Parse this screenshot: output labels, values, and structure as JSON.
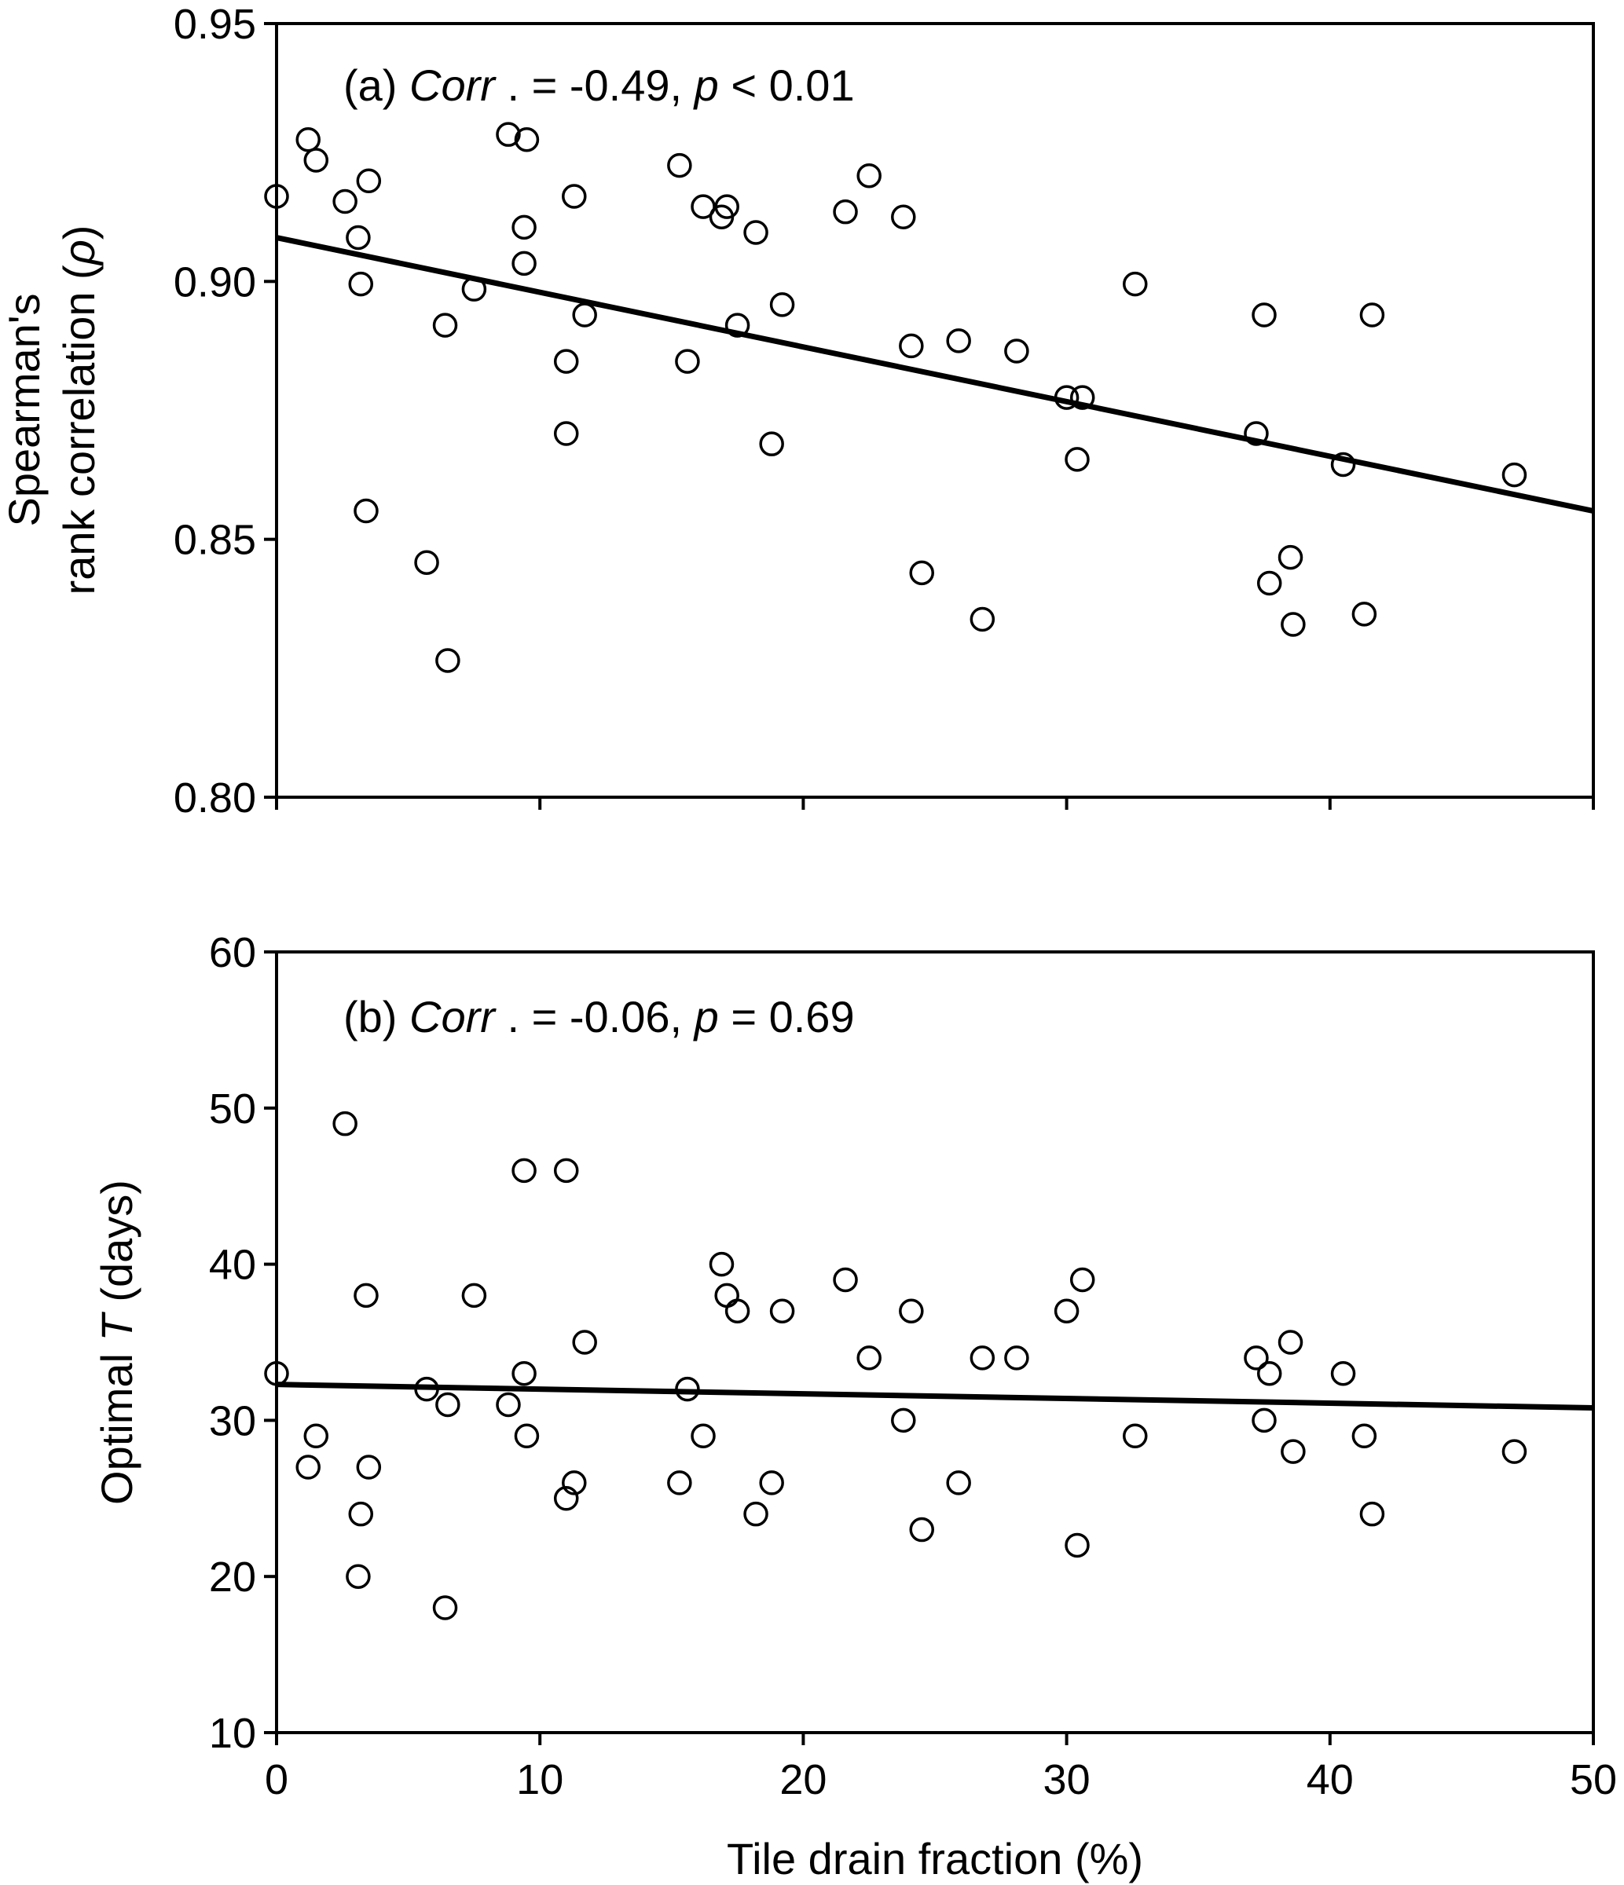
{
  "chart_data": [
    {
      "type": "scatter",
      "panel_label": "(a)",
      "annotation": {
        "corr_word": "Corr",
        "corr_value": ". = -0.49, ",
        "p_word": "p",
        "p_value": " < 0.01"
      },
      "ylabel_lines": [
        "Spearman's",
        "rank correlation ("
      ],
      "ylabel_symbol": "ρ",
      "ylabel_close": ")",
      "xlim": [
        0,
        50
      ],
      "ylim": [
        0.8,
        0.95
      ],
      "yticks": [
        "0.80",
        "0.85",
        "0.90",
        "0.95"
      ],
      "xticks": [
        "",
        "",
        "",
        "",
        "",
        ""
      ],
      "grid": false,
      "fit_line": {
        "x": [
          0,
          50
        ],
        "y": [
          0.9085,
          0.8555
        ]
      },
      "x": [
        0,
        1.2,
        1.5,
        2.6,
        3.1,
        3.2,
        3.4,
        3.5,
        5.7,
        6.4,
        6.5,
        7.5,
        8.8,
        9.4,
        9.4,
        9.5,
        11.0,
        11.0,
        11.3,
        11.7,
        15.3,
        15.6,
        16.2,
        16.9,
        17.1,
        17.5,
        18.2,
        18.8,
        19.2,
        21.6,
        22.5,
        23.8,
        24.1,
        24.5,
        25.9,
        26.8,
        28.1,
        30.0,
        30.4,
        30.6,
        32.6,
        37.2,
        37.5,
        37.7,
        38.5,
        38.6,
        40.5,
        41.3,
        41.6,
        47.0
      ],
      "y": [
        0.9165,
        0.9275,
        0.9235,
        0.9155,
        0.9085,
        0.8995,
        0.8555,
        0.9195,
        0.8455,
        0.8915,
        0.8265,
        0.8985,
        0.9285,
        0.9105,
        0.9035,
        0.9275,
        0.8845,
        0.8705,
        0.9165,
        0.8935,
        0.9225,
        0.8845,
        0.9145,
        0.9125,
        0.9145,
        0.8915,
        0.9095,
        0.8685,
        0.8955,
        0.9135,
        0.9205,
        0.9125,
        0.8875,
        0.8435,
        0.8885,
        0.8345,
        0.8865,
        0.8775,
        0.8655,
        0.8775,
        0.8995,
        0.8705,
        0.8935,
        0.8415,
        0.8465,
        0.8335,
        0.8645,
        0.8355,
        0.8935,
        0.8625
      ]
    },
    {
      "type": "scatter",
      "panel_label": "(b)",
      "annotation": {
        "corr_word": "Corr",
        "corr_value": ". = -0.06, ",
        "p_word": "p",
        "p_value": " = 0.69"
      },
      "ylabel_prefix": "Optimal ",
      "ylabel_italic": "T",
      "ylabel_suffix": " (days)",
      "xlabel": "Tile drain fraction (%)",
      "xlim": [
        0,
        50
      ],
      "ylim": [
        10,
        60
      ],
      "yticks": [
        "10",
        "20",
        "30",
        "40",
        "50",
        "60"
      ],
      "xticks": [
        "0",
        "10",
        "20",
        "30",
        "40",
        "50"
      ],
      "grid": false,
      "fit_line": {
        "x": [
          0,
          50
        ],
        "y": [
          32.3,
          30.8
        ]
      },
      "x": [
        0,
        1.2,
        1.5,
        2.6,
        3.1,
        3.2,
        3.4,
        3.5,
        5.7,
        6.4,
        6.5,
        7.5,
        8.8,
        9.4,
        9.4,
        9.5,
        11.0,
        11.0,
        11.3,
        11.7,
        15.3,
        15.6,
        16.2,
        16.9,
        17.1,
        17.5,
        18.2,
        18.8,
        19.2,
        21.6,
        22.5,
        23.8,
        24.1,
        24.5,
        25.9,
        26.8,
        28.1,
        30.0,
        30.4,
        30.6,
        32.6,
        37.2,
        37.5,
        37.7,
        38.5,
        38.6,
        40.5,
        41.3,
        41.6,
        47.0
      ],
      "y": [
        33,
        27,
        29,
        49,
        20,
        24,
        38,
        27,
        32,
        18,
        31,
        38,
        31,
        46,
        33,
        29,
        46,
        25,
        26,
        35,
        26,
        32,
        29,
        40,
        38,
        37,
        24,
        26,
        37,
        39,
        34,
        30,
        37,
        23,
        26,
        34,
        34,
        37,
        22,
        39,
        29,
        34,
        30,
        33,
        35,
        28,
        33,
        29,
        24,
        28
      ]
    }
  ]
}
